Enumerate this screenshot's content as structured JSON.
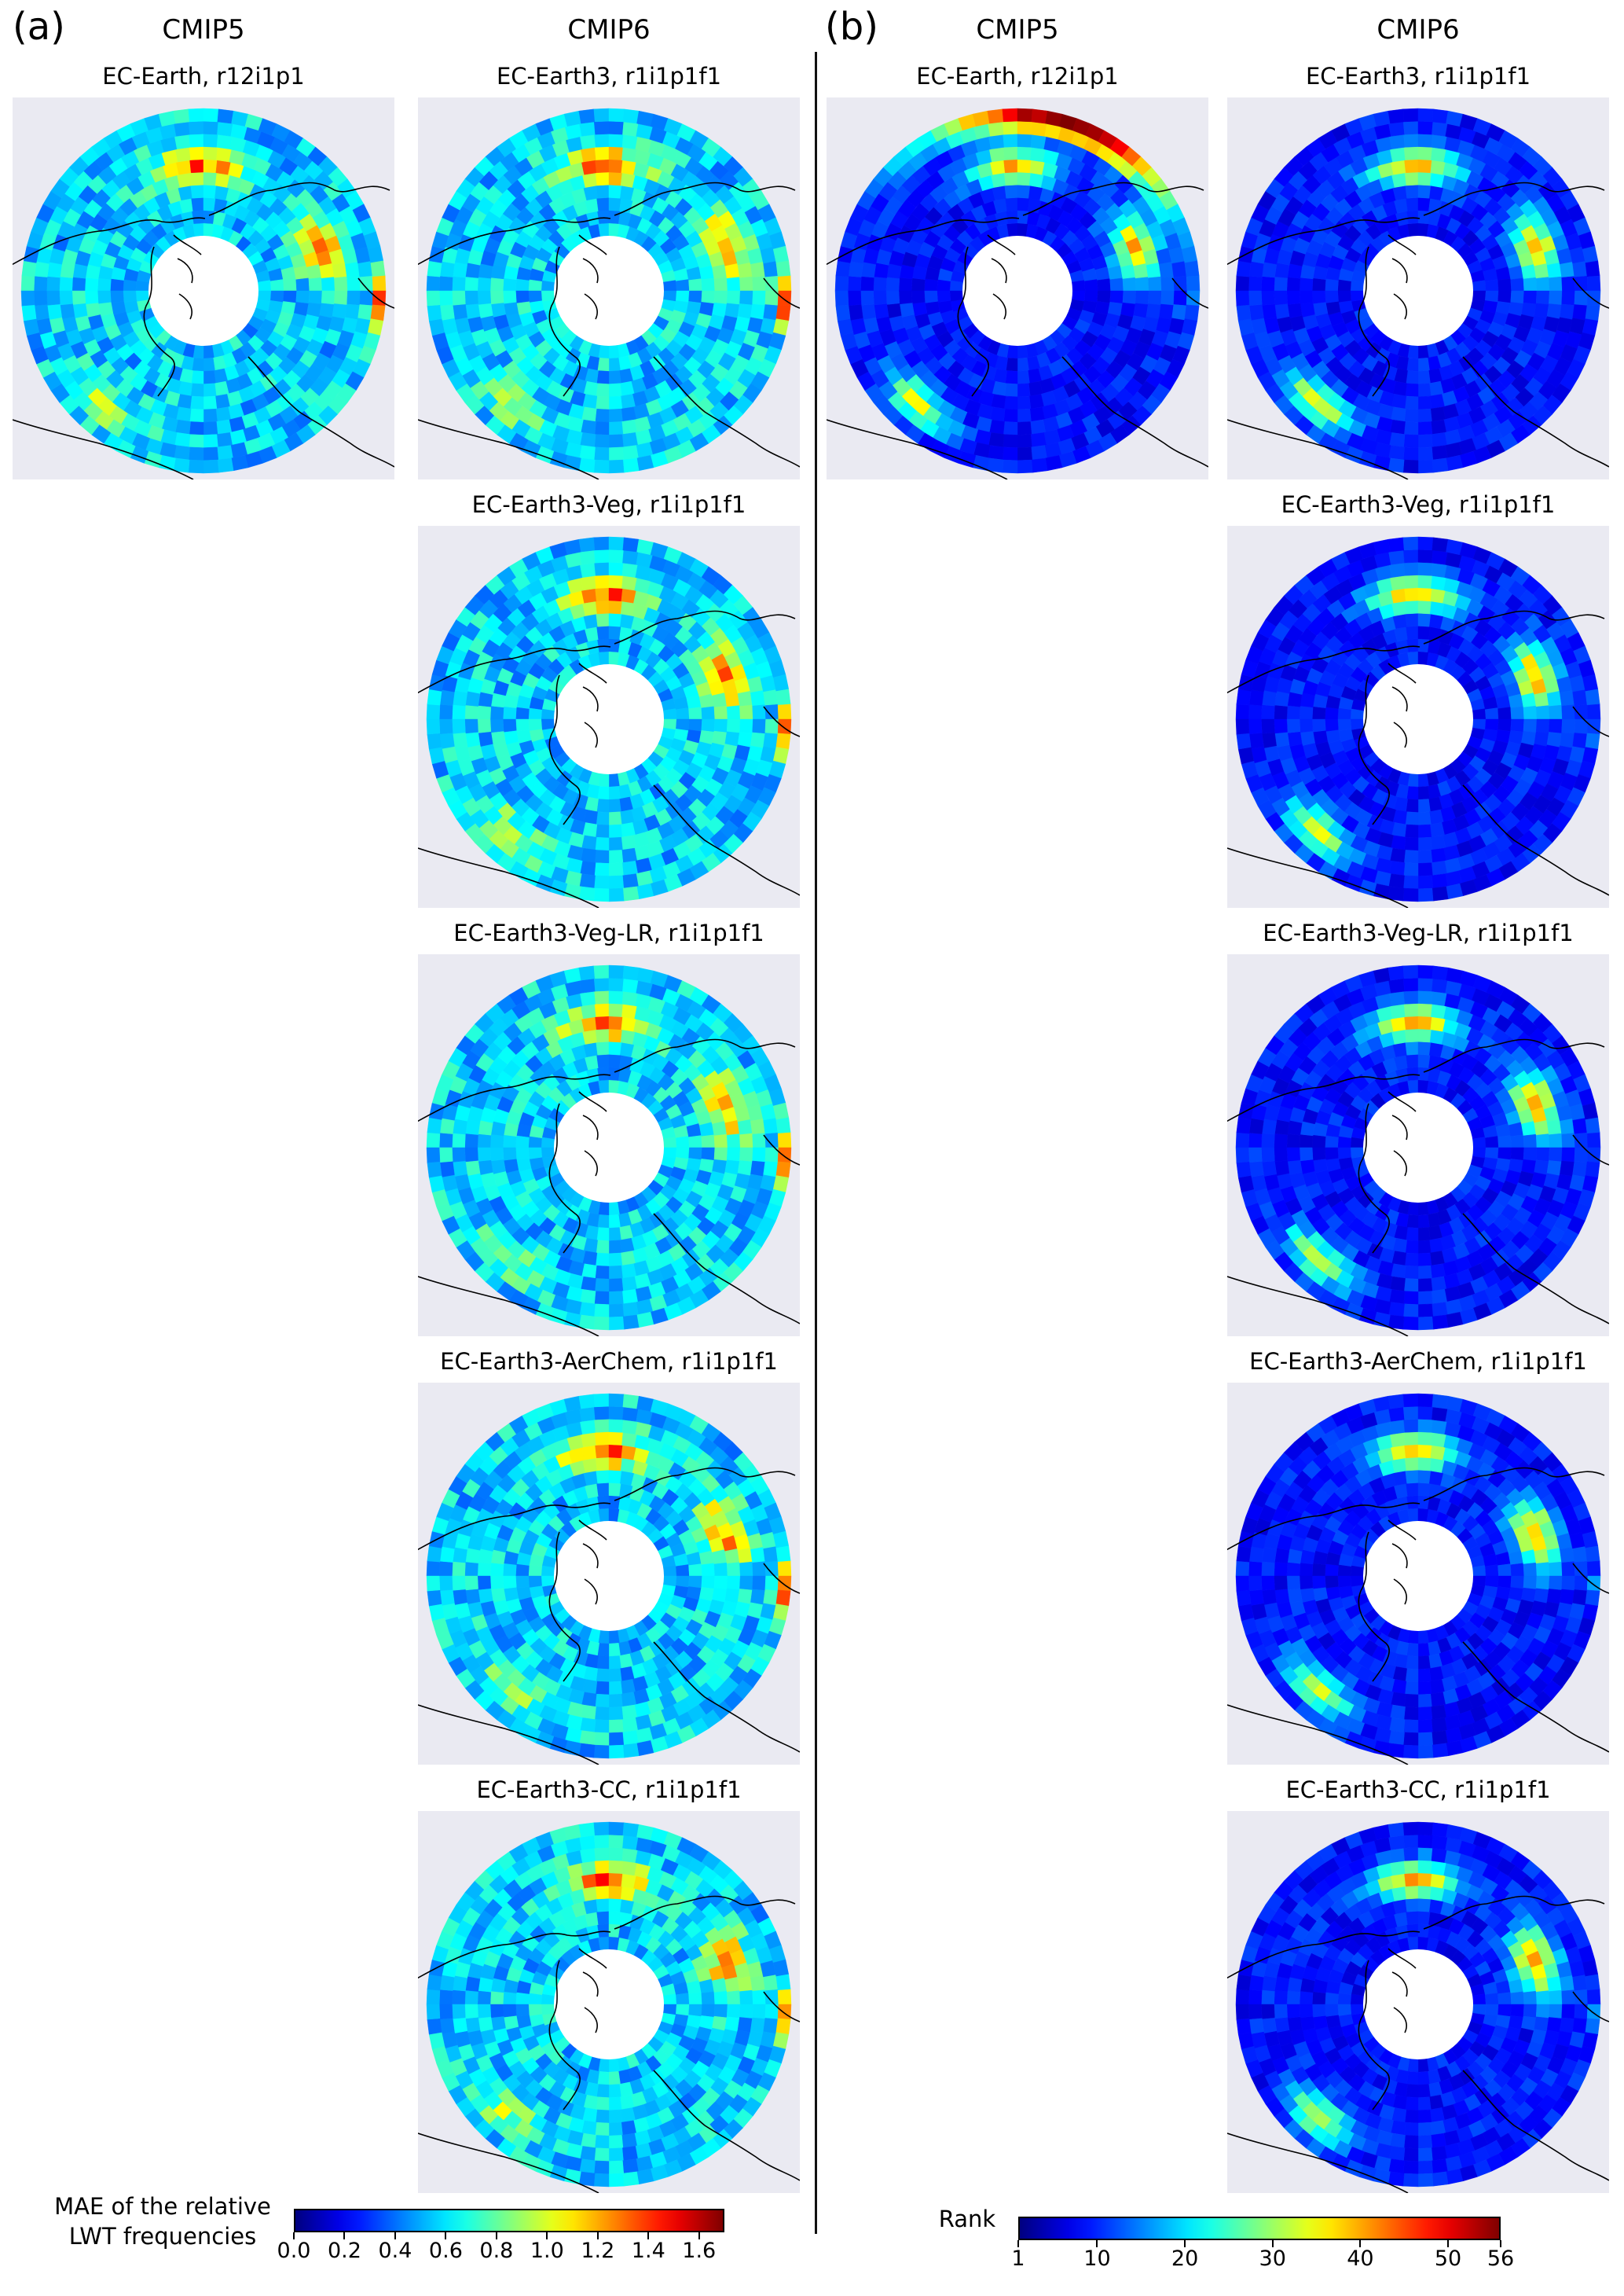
{
  "panels": [
    {
      "letter": "(a)",
      "headings": [
        "CMIP5",
        "CMIP6"
      ],
      "cmip5_map": {
        "title": "EC-Earth, r12i1p1",
        "palette": "jet",
        "hot_spots": []
      },
      "cmip6_maps": [
        {
          "title": "EC-Earth3, r1i1p1f1"
        },
        {
          "title": "EC-Earth3-Veg, r1i1p1f1"
        },
        {
          "title": "EC-Earth3-Veg-LR, r1i1p1f1"
        },
        {
          "title": "EC-Earth3-AerChem, r1i1p1f1"
        },
        {
          "title": "EC-Earth3-CC, r1i1p1f1"
        }
      ],
      "colorbar": {
        "label_line1": "MAE of the relative",
        "label_line2": "LWT frequencies",
        "ticks": [
          "0.0",
          "0.2",
          "0.4",
          "0.6",
          "0.8",
          "1.0",
          "1.2",
          "1.4",
          "1.6"
        ],
        "tick_values": [
          0.0,
          0.2,
          0.4,
          0.6,
          0.8,
          1.0,
          1.2,
          1.4,
          1.6
        ],
        "range": [
          0.0,
          1.7
        ],
        "colormap": "jet"
      }
    },
    {
      "letter": "(b)",
      "headings": [
        "CMIP5",
        "CMIP6"
      ],
      "cmip5_map": {
        "title": "EC-Earth, r12i1p1"
      },
      "cmip6_maps": [
        {
          "title": "EC-Earth3, r1i1p1f1"
        },
        {
          "title": "EC-Earth3-Veg, r1i1p1f1"
        },
        {
          "title": "EC-Earth3-Veg-LR, r1i1p1f1"
        },
        {
          "title": "EC-Earth3-AerChem, r1i1p1f1"
        },
        {
          "title": "EC-Earth3-CC, r1i1p1f1"
        }
      ],
      "colorbar": {
        "label_line1": "Rank",
        "ticks": [
          "1",
          "10",
          "20",
          "30",
          "40",
          "50",
          "56"
        ],
        "tick_values": [
          1,
          10,
          20,
          30,
          40,
          50,
          56
        ],
        "range": [
          1,
          56
        ],
        "colormap": "jet"
      }
    }
  ],
  "colors": {
    "map_background": "#eaeaf2",
    "coastline": "#000000",
    "pole_mask": "#ffffff"
  }
}
